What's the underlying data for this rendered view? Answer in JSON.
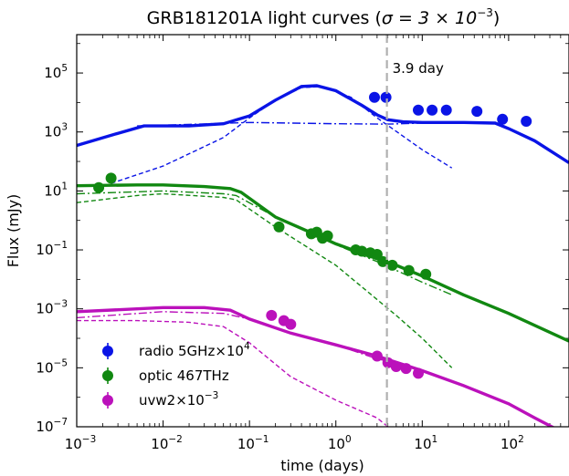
{
  "chart_data": {
    "type": "scatter",
    "title_prefix": "GRB181201A light curves (",
    "title_sigma": "σ = 3 × 10",
    "title_sigma_exp": "−3",
    "title_suffix": ")",
    "xlabel": "time (days)",
    "ylabel": "Flux (mJy)",
    "x_scale": "log",
    "y_scale": "log",
    "xlim": [
      0.001,
      500
    ],
    "ylim": [
      1e-07,
      2000000.0
    ],
    "x_ticks": [
      {
        "value": 0.001,
        "base": "10",
        "exp": "−3"
      },
      {
        "value": 0.01,
        "base": "10",
        "exp": "−2"
      },
      {
        "value": 0.1,
        "base": "10",
        "exp": "−1"
      },
      {
        "value": 1,
        "base": "10",
        "exp": "0"
      },
      {
        "value": 10,
        "base": "10",
        "exp": "1"
      },
      {
        "value": 100,
        "base": "10",
        "exp": "2"
      }
    ],
    "y_ticks": [
      {
        "value": 1e-07,
        "base": "10",
        "exp": "−7"
      },
      {
        "value": 1e-05,
        "base": "10",
        "exp": "−5"
      },
      {
        "value": 0.001,
        "base": "10",
        "exp": "−3"
      },
      {
        "value": 0.1,
        "base": "10",
        "exp": "−1"
      },
      {
        "value": 10,
        "base": "10",
        "exp": "1"
      },
      {
        "value": 1000,
        "base": "10",
        "exp": "3"
      },
      {
        "value": 100000,
        "base": "10",
        "exp": "5"
      }
    ],
    "vline": {
      "x": 3.9,
      "label": "3.9 day",
      "color": "#b0b0b0"
    },
    "legend_position": "bottom-left",
    "series": [
      {
        "name": "radio 5GHz×10",
        "name_exp": "4",
        "color": "#0a14e6",
        "points": [
          [
            2.8,
            15000
          ],
          [
            3.8,
            15000
          ],
          [
            9,
            5500
          ],
          [
            13,
            5500
          ],
          [
            19,
            5500
          ],
          [
            43,
            5000
          ],
          [
            85,
            2700
          ],
          [
            160,
            2300
          ]
        ],
        "model": [
          [
            0.001,
            350
          ],
          [
            0.003,
            900
          ],
          [
            0.006,
            1600
          ],
          [
            0.02,
            1600
          ],
          [
            0.05,
            1900
          ],
          [
            0.1,
            3500
          ],
          [
            0.2,
            12000
          ],
          [
            0.4,
            35000
          ],
          [
            0.6,
            37000
          ],
          [
            1,
            25000
          ],
          [
            2,
            8000
          ],
          [
            3,
            3800
          ],
          [
            4,
            2600
          ],
          [
            6,
            2200
          ],
          [
            10,
            2100
          ],
          [
            30,
            2100
          ],
          [
            70,
            2000
          ],
          [
            100,
            1300
          ],
          [
            200,
            500
          ],
          [
            500,
            90
          ]
        ],
        "comp_dashed": [
          [
            0.0025,
            18
          ],
          [
            0.01,
            70
          ],
          [
            0.05,
            650
          ],
          [
            0.1,
            3000
          ],
          [
            0.2,
            12000
          ],
          [
            0.4,
            32000
          ],
          [
            0.7,
            35000
          ],
          [
            1.5,
            15000
          ],
          [
            3,
            3000
          ],
          [
            10,
            250
          ],
          [
            22,
            60
          ]
        ],
        "comp_dashdot": [
          [
            0.005,
            1600
          ],
          [
            0.01,
            1700
          ],
          [
            0.1,
            2100
          ],
          [
            1,
            1900
          ],
          [
            4,
            1850
          ],
          [
            10,
            2000
          ],
          [
            23,
            2100
          ]
        ]
      },
      {
        "name": "optic 467THz",
        "name_exp": "",
        "color": "#118811",
        "points": [
          [
            0.0018,
            13
          ],
          [
            0.0025,
            27
          ],
          [
            0.22,
            0.6
          ],
          [
            0.52,
            0.35
          ],
          [
            0.6,
            0.4
          ],
          [
            0.7,
            0.25
          ],
          [
            0.8,
            0.3
          ],
          [
            1.7,
            0.1
          ],
          [
            2.0,
            0.09
          ],
          [
            2.5,
            0.08
          ],
          [
            3.0,
            0.07
          ],
          [
            3.5,
            0.04
          ],
          [
            4.5,
            0.03
          ],
          [
            7,
            0.02
          ],
          [
            11,
            0.015
          ]
        ],
        "model": [
          [
            0.001,
            15
          ],
          [
            0.005,
            16
          ],
          [
            0.01,
            16
          ],
          [
            0.03,
            14
          ],
          [
            0.06,
            12
          ],
          [
            0.08,
            9
          ],
          [
            0.2,
            1.3
          ],
          [
            0.5,
            0.4
          ],
          [
            1,
            0.16
          ],
          [
            3,
            0.05
          ],
          [
            5,
            0.03
          ],
          [
            10,
            0.013
          ],
          [
            30,
            0.003
          ],
          [
            100,
            0.0007
          ],
          [
            500,
            8e-05
          ]
        ],
        "comp_dashed": [
          [
            0.001,
            4
          ],
          [
            0.005,
            7
          ],
          [
            0.01,
            8
          ],
          [
            0.05,
            6
          ],
          [
            0.07,
            5
          ],
          [
            0.2,
            0.6
          ],
          [
            1,
            0.03
          ],
          [
            5,
            0.0006
          ],
          [
            10,
            0.0001
          ],
          [
            22,
            1e-05
          ]
        ],
        "comp_dashdot": [
          [
            0.001,
            8
          ],
          [
            0.01,
            10
          ],
          [
            0.05,
            8
          ],
          [
            0.07,
            7
          ],
          [
            0.2,
            1.3
          ],
          [
            1,
            0.15
          ],
          [
            3,
            0.04
          ],
          [
            10,
            0.008
          ],
          [
            22,
            0.003
          ]
        ]
      },
      {
        "name": "uvw2×10",
        "name_exp": "−3",
        "color": "#bb11bb",
        "points": [
          [
            0.18,
            0.0006
          ],
          [
            0.25,
            0.0004
          ],
          [
            0.3,
            0.0003
          ],
          [
            3.0,
            2.5e-05
          ],
          [
            4.0,
            1.5e-05
          ],
          [
            5.0,
            1.1e-05
          ],
          [
            6.5,
            9.5e-06
          ],
          [
            9.0,
            6.5e-06
          ]
        ],
        "model": [
          [
            0.001,
            0.0008
          ],
          [
            0.005,
            0.001
          ],
          [
            0.01,
            0.0011
          ],
          [
            0.03,
            0.0011
          ],
          [
            0.06,
            0.0009
          ],
          [
            0.1,
            0.00045
          ],
          [
            0.3,
            0.00015
          ],
          [
            1,
            6e-05
          ],
          [
            3,
            2.5e-05
          ],
          [
            10,
            8e-06
          ],
          [
            30,
            2.5e-06
          ],
          [
            100,
            6e-07
          ],
          [
            200,
            2e-07
          ],
          [
            400,
            7e-08
          ]
        ],
        "comp_dashed": [
          [
            0.001,
            0.0004
          ],
          [
            0.005,
            0.0004
          ],
          [
            0.02,
            0.00035
          ],
          [
            0.05,
            0.00025
          ],
          [
            0.1,
            7e-05
          ],
          [
            0.3,
            5e-06
          ],
          [
            1,
            8e-07
          ],
          [
            3,
            2e-07
          ],
          [
            4,
            1e-07
          ]
        ],
        "comp_dashdot": [
          [
            0.001,
            0.0005
          ],
          [
            0.01,
            0.0008
          ],
          [
            0.05,
            0.0007
          ],
          [
            0.1,
            0.00045
          ],
          [
            0.3,
            0.00015
          ],
          [
            1,
            6e-05
          ],
          [
            3,
            2e-05
          ],
          [
            5,
            1.5e-05
          ]
        ]
      }
    ]
  }
}
